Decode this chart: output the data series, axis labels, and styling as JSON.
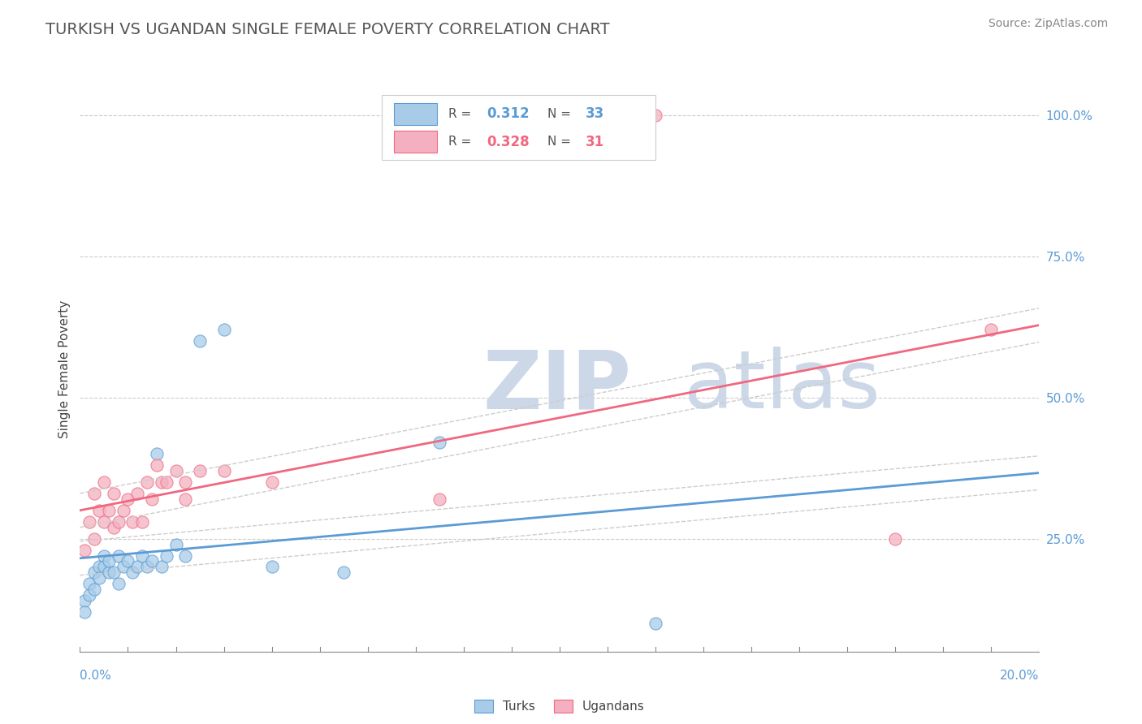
{
  "title": "TURKISH VS UGANDAN SINGLE FEMALE POVERTY CORRELATION CHART",
  "source": "Source: ZipAtlas.com",
  "ylabel": "Single Female Poverty",
  "xlim": [
    0.0,
    0.2
  ],
  "ylim": [
    0.05,
    1.05
  ],
  "turks_R": 0.312,
  "turks_N": 33,
  "ugandans_R": 0.328,
  "ugandans_N": 31,
  "turk_color": "#a8cce8",
  "ugandan_color": "#f4b0c0",
  "turk_line_color": "#5b9bd5",
  "ugandan_line_color": "#f06880",
  "ci_color": "#cccccc",
  "watermark_zip": "ZIP",
  "watermark_atlas": "atlas",
  "watermark_color": "#ccd8e8",
  "background_color": "#ffffff",
  "grid_color": "#cccccc",
  "turks_x": [
    0.001,
    0.001,
    0.002,
    0.002,
    0.003,
    0.003,
    0.004,
    0.004,
    0.005,
    0.005,
    0.006,
    0.006,
    0.007,
    0.008,
    0.008,
    0.009,
    0.01,
    0.011,
    0.012,
    0.013,
    0.014,
    0.015,
    0.016,
    0.017,
    0.018,
    0.02,
    0.022,
    0.025,
    0.03,
    0.04,
    0.055,
    0.075,
    0.12
  ],
  "turks_y": [
    0.14,
    0.12,
    0.17,
    0.15,
    0.16,
    0.19,
    0.2,
    0.18,
    0.22,
    0.2,
    0.19,
    0.21,
    0.19,
    0.17,
    0.22,
    0.2,
    0.21,
    0.19,
    0.2,
    0.22,
    0.2,
    0.21,
    0.4,
    0.2,
    0.22,
    0.24,
    0.22,
    0.6,
    0.62,
    0.2,
    0.19,
    0.42,
    0.1
  ],
  "ugandans_x": [
    0.001,
    0.002,
    0.003,
    0.003,
    0.004,
    0.005,
    0.005,
    0.006,
    0.007,
    0.007,
    0.008,
    0.009,
    0.01,
    0.011,
    0.012,
    0.013,
    0.014,
    0.015,
    0.016,
    0.017,
    0.018,
    0.02,
    0.022,
    0.022,
    0.025,
    0.03,
    0.04,
    0.075,
    0.12,
    0.17,
    0.19
  ],
  "ugandans_y": [
    0.23,
    0.28,
    0.25,
    0.33,
    0.3,
    0.28,
    0.35,
    0.3,
    0.27,
    0.33,
    0.28,
    0.3,
    0.32,
    0.28,
    0.33,
    0.28,
    0.35,
    0.32,
    0.38,
    0.35,
    0.35,
    0.37,
    0.32,
    0.35,
    0.37,
    0.37,
    0.35,
    0.32,
    1.0,
    0.25,
    0.62
  ],
  "y_ticks": [
    0.25,
    0.5,
    0.75,
    1.0
  ],
  "y_tick_labels": [
    "25.0%",
    "50.0%",
    "75.0%",
    "100.0%"
  ]
}
